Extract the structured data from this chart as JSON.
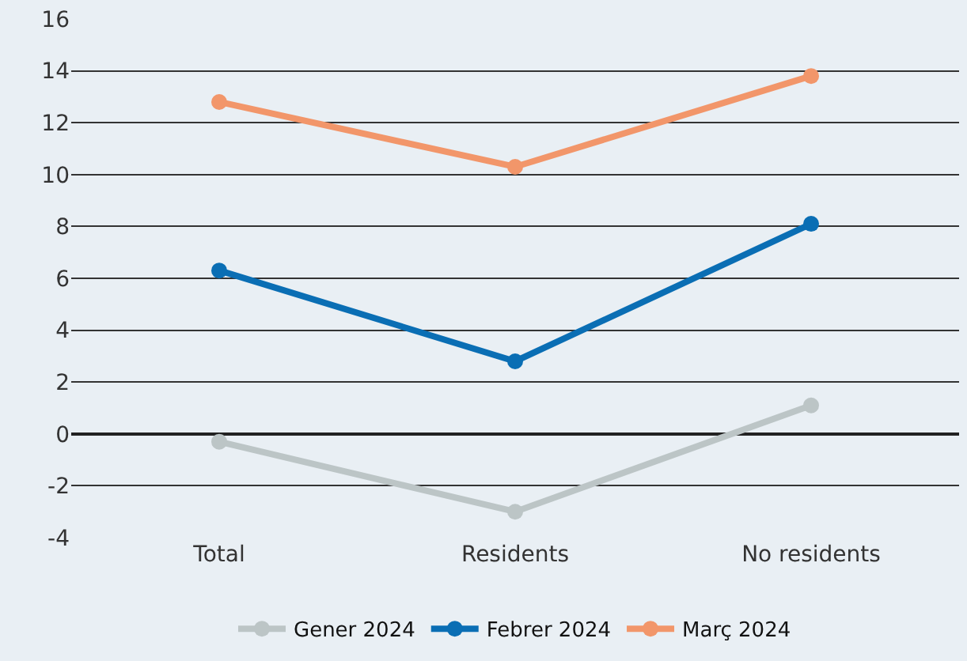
{
  "chart_data": {
    "type": "line",
    "categories": [
      "Total",
      "Residents",
      "No residents"
    ],
    "series": [
      {
        "name": "Gener 2024",
        "color": "#bcc5c6",
        "values": [
          -0.3,
          -3.0,
          1.1
        ]
      },
      {
        "name": "Febrer 2024",
        "color": "#0a6eb4",
        "values": [
          6.3,
          2.8,
          8.1
        ]
      },
      {
        "name": "Març 2024",
        "color": "#f2966a",
        "values": [
          12.8,
          10.3,
          13.8
        ]
      }
    ],
    "ylim": [
      -4,
      16
    ],
    "yticks": [
      -4,
      -2,
      0,
      2,
      4,
      6,
      8,
      10,
      12,
      14,
      16
    ],
    "grid": "y",
    "legend": "bottom",
    "marker": "circle",
    "line_style": "solid"
  }
}
